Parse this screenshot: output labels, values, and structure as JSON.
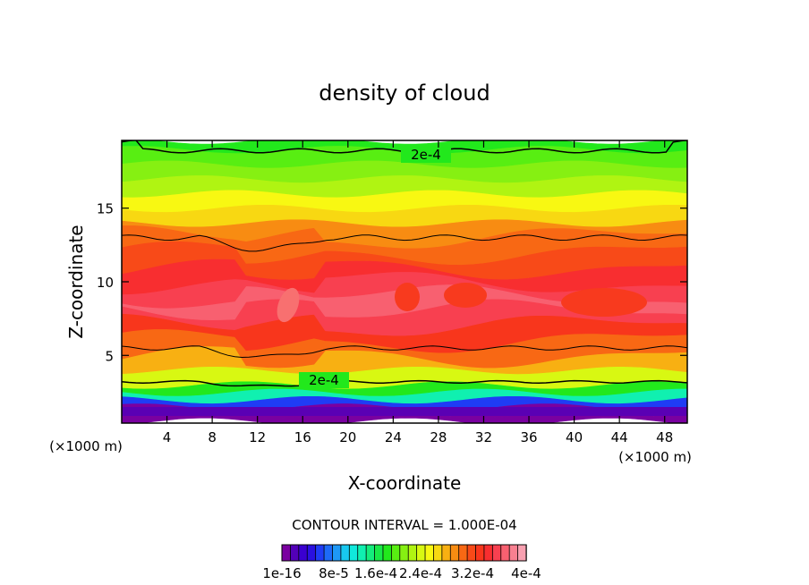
{
  "chart_data": {
    "type": "heatmap",
    "subtype": "filled-contour",
    "title": "density of cloud",
    "xlabel": "X-coordinate",
    "ylabel": "Z-coordinate",
    "x_unit_left": "(×1000 m)",
    "x_unit_right": "(×1000 m)",
    "xlim": [
      0,
      50
    ],
    "ylim": [
      0.4,
      19.6
    ],
    "xticks": [
      4,
      8,
      12,
      16,
      20,
      24,
      28,
      32,
      36,
      40,
      44,
      48
    ],
    "yticks": [
      5,
      10,
      15
    ],
    "contour_interval_text": "CONTOUR INTERVAL = 1.000E-04",
    "contour_labels": [
      {
        "text": "2e-4",
        "x": 26,
        "z": 18.8
      },
      {
        "text": "2e-4",
        "x": 17.5,
        "z": 3.0
      }
    ],
    "colorbar": {
      "labels": [
        "1e-16",
        "8e-5",
        "1.6e-4",
        "2.4e-4",
        "3.2e-4",
        "4e-4"
      ],
      "colors": [
        "#7a00a0",
        "#5200b8",
        "#3a00d0",
        "#2a10e0",
        "#1f3cf5",
        "#1d6af8",
        "#1e98f6",
        "#18c8f0",
        "#10e8dc",
        "#10f0b0",
        "#14ec7c",
        "#18e848",
        "#22e81c",
        "#58ee12",
        "#86f012",
        "#b0f412",
        "#d8f812",
        "#f8f812",
        "#f8d812",
        "#f8b012",
        "#f88c12",
        "#f86814",
        "#f84a18",
        "#f8361c",
        "#f82e30",
        "#f84050",
        "#f86070",
        "#f88090",
        "#f8a0b0"
      ]
    },
    "profile": [
      {
        "z": 0.5,
        "value": 0.0
      },
      {
        "z": 1.0,
        "value": 0.0
      },
      {
        "z": 1.5,
        "value": 0.0
      },
      {
        "z": 2.0,
        "value": 0.0001
      },
      {
        "z": 2.5,
        "value": 0.00015
      },
      {
        "z": 3.0,
        "value": 0.0002
      },
      {
        "z": 4.0,
        "value": 0.00025
      },
      {
        "z": 5.0,
        "value": 0.00029
      },
      {
        "z": 6.0,
        "value": 0.00032
      },
      {
        "z": 7.0,
        "value": 0.00035
      },
      {
        "z": 8.0,
        "value": 0.00037
      },
      {
        "z": 9.0,
        "value": 0.00037
      },
      {
        "z": 10.0,
        "value": 0.00035
      },
      {
        "z": 11.0,
        "value": 0.00033
      },
      {
        "z": 12.0,
        "value": 0.0003
      },
      {
        "z": 13.0,
        "value": 0.00029
      },
      {
        "z": 14.0,
        "value": 0.00027
      },
      {
        "z": 15.0,
        "value": 0.00025
      },
      {
        "z": 16.0,
        "value": 0.00023
      },
      {
        "z": 17.0,
        "value": 0.00021
      },
      {
        "z": 18.0,
        "value": 0.0002
      },
      {
        "z": 19.0,
        "value": 0.00018
      },
      {
        "z": 19.6,
        "value": 0.00017
      }
    ]
  }
}
